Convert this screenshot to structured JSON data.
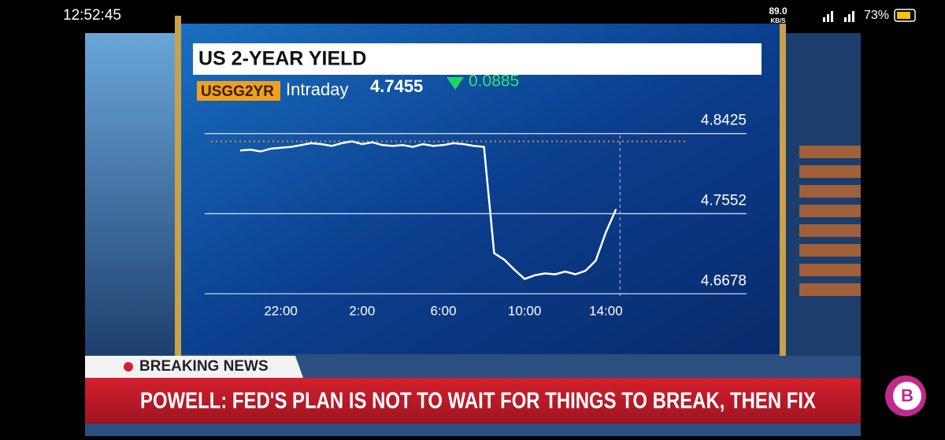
{
  "status_bar": {
    "time": "12:52:45",
    "speed": "89.0",
    "speed_unit": "KB/S",
    "battery": "73%"
  },
  "header": {
    "title": "US 2-YEAR YIELD",
    "ticker": "USGG2YR",
    "period": "Intraday",
    "last": "4.7455",
    "change": "0.0885"
  },
  "chart_data": {
    "type": "line",
    "categories": [
      null,
      null,
      null,
      null,
      "22:00",
      null,
      null,
      null,
      null,
      null,
      null,
      null,
      "2:00",
      null,
      null,
      null,
      null,
      null,
      null,
      null,
      "6:00",
      null,
      null,
      null,
      null,
      null,
      null,
      null,
      "10:00",
      null,
      null,
      null,
      null,
      null,
      null,
      null,
      "14:00",
      null
    ],
    "series": [
      {
        "name": "US 2-YEAR YIELD",
        "color": "#ffffff",
        "values": [
          4.824,
          4.825,
          4.823,
          4.826,
          4.827,
          4.828,
          4.83,
          4.832,
          4.831,
          4.829,
          4.832,
          4.834,
          4.831,
          4.833,
          4.83,
          4.829,
          4.83,
          4.828,
          4.831,
          4.829,
          4.83,
          4.832,
          4.831,
          4.829,
          4.828,
          4.712,
          4.705,
          4.694,
          4.684,
          4.688,
          4.69,
          4.689,
          4.692,
          4.689,
          4.693,
          4.704,
          4.735,
          4.76
        ]
      }
    ],
    "reference_value": 4.834,
    "reference_color": "#e8892a",
    "ylim": [
      4.662,
      4.868
    ],
    "yticks": [
      4.6678,
      4.7552,
      4.8425
    ],
    "grid": true
  },
  "news": {
    "tag": "BREAKING NEWS",
    "headline": "POWELL: FED'S PLAN IS NOT TO WAIT FOR THINGS TO BREAK, THEN FIX"
  },
  "logo": "B"
}
